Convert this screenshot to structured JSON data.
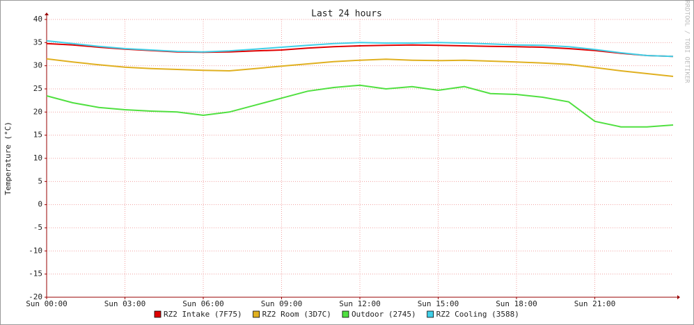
{
  "chart_data": {
    "type": "line",
    "title": "Last 24 hours",
    "y_label": "Temperature (°C)",
    "watermark": "RRDTOOL / TOBI OETIKER",
    "x": [
      0,
      1,
      2,
      3,
      4,
      5,
      6,
      7,
      8,
      9,
      10,
      11,
      12,
      13,
      14,
      15,
      16,
      17,
      18,
      19,
      20,
      21,
      22,
      23,
      24
    ],
    "xlim": [
      0,
      24
    ],
    "xticks": [
      {
        "value": 0,
        "label": "Sun 00:00"
      },
      {
        "value": 3,
        "label": "Sun 03:00"
      },
      {
        "value": 6,
        "label": "Sun 06:00"
      },
      {
        "value": 9,
        "label": "Sun 09:00"
      },
      {
        "value": 12,
        "label": "Sun 12:00"
      },
      {
        "value": 15,
        "label": "Sun 15:00"
      },
      {
        "value": 18,
        "label": "Sun 18:00"
      },
      {
        "value": 21,
        "label": "Sun 21:00"
      }
    ],
    "ylim": [
      -20,
      40
    ],
    "yticks": [
      -20,
      -15,
      -10,
      -5,
      0,
      5,
      10,
      15,
      20,
      25,
      30,
      35,
      40
    ],
    "grid": true,
    "series": [
      {
        "name": "RZ2 Intake (7F75)",
        "color": "#e00000",
        "values": [
          34.8,
          34.5,
          34.0,
          33.6,
          33.3,
          33.0,
          32.9,
          33.0,
          33.2,
          33.4,
          33.8,
          34.1,
          34.3,
          34.4,
          34.5,
          34.4,
          34.3,
          34.2,
          34.1,
          34.0,
          33.7,
          33.3,
          32.7,
          32.2,
          32.0
        ]
      },
      {
        "name": "RZ2 Room (3D7C)",
        "color": "#e0b020",
        "values": [
          31.5,
          30.8,
          30.2,
          29.7,
          29.4,
          29.2,
          29.0,
          28.9,
          29.4,
          29.9,
          30.4,
          30.9,
          31.2,
          31.4,
          31.2,
          31.1,
          31.2,
          31.0,
          30.8,
          30.6,
          30.3,
          29.6,
          28.9,
          28.3,
          27.7
        ]
      },
      {
        "name": "Outdoor (2745)",
        "color": "#50e040",
        "values": [
          23.5,
          22.0,
          21.0,
          20.5,
          20.2,
          20.0,
          19.3,
          20.0,
          21.5,
          23.0,
          24.5,
          25.3,
          25.8,
          25.0,
          25.5,
          24.7,
          25.5,
          24.0,
          23.8,
          23.2,
          22.2,
          18.0,
          16.8,
          16.8,
          17.2
        ]
      },
      {
        "name": "RZ2 Cooling (3588)",
        "color": "#40d0e8",
        "values": [
          35.4,
          34.8,
          34.2,
          33.7,
          33.4,
          33.1,
          33.0,
          33.2,
          33.6,
          34.0,
          34.4,
          34.8,
          35.0,
          34.9,
          34.9,
          35.0,
          34.9,
          34.7,
          34.5,
          34.4,
          34.1,
          33.5,
          32.8,
          32.2,
          32.0
        ]
      }
    ]
  }
}
